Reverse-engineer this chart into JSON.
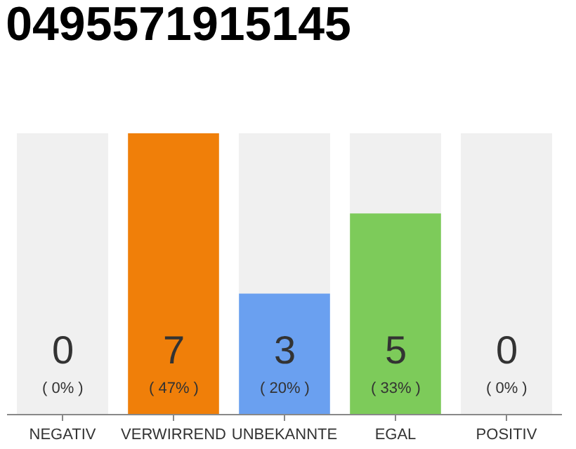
{
  "chart_data": {
    "type": "bar",
    "title": "0495571915145",
    "categories": [
      "NEGATIV",
      "VERWIRREND",
      "UNBEKANNTE",
      "EGAL",
      "POSITIV"
    ],
    "values": [
      0,
      7,
      3,
      5,
      0
    ],
    "colors": [
      "#eeeeee",
      "#f07f09",
      "#6aa0f0",
      "#7dcb5a",
      "#eeeeee"
    ],
    "ylim": [
      0,
      7
    ],
    "tick_labels": "x",
    "grid": false,
    "data_labels": true,
    "annotations": [
      "( 0% )",
      "( 47% )",
      "( 20% )",
      "( 33% )",
      "( 0% )"
    ]
  }
}
